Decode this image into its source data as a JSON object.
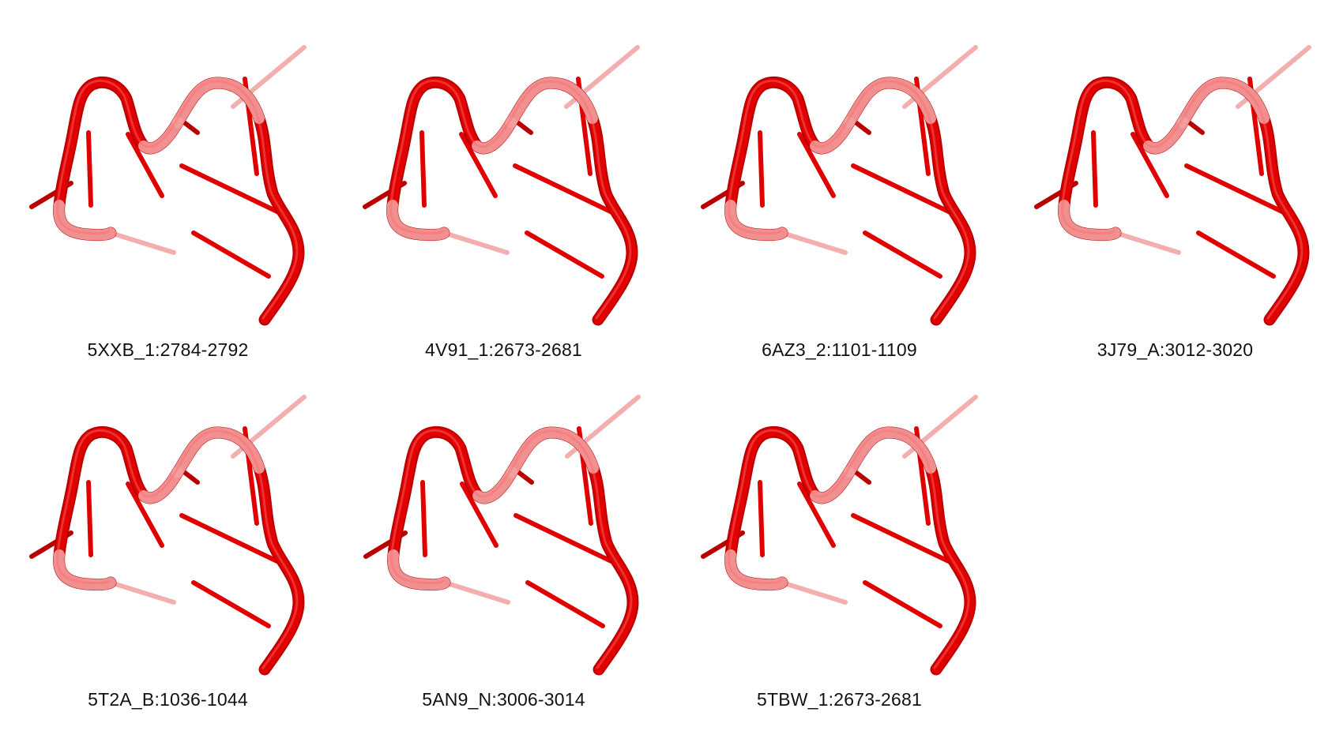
{
  "colors": {
    "strand": "#e00000",
    "strand_dark": "#b80000",
    "faded": "#f2a0a0",
    "caption": "#111111"
  },
  "panels": [
    {
      "label": "5XXB_1:2784-2792",
      "variant": "a"
    },
    {
      "label": "4V91_1:2673-2681",
      "variant": "b"
    },
    {
      "label": "6AZ3_2:1101-1109",
      "variant": "a"
    },
    {
      "label": "3J79_A:3012-3020",
      "variant": "c"
    },
    {
      "label": "5T2A_B:1036-1044",
      "variant": "a"
    },
    {
      "label": "5AN9_N:3006-3014",
      "variant": "d"
    },
    {
      "label": "5TBW_1:2673-2681",
      "variant": "a"
    }
  ]
}
